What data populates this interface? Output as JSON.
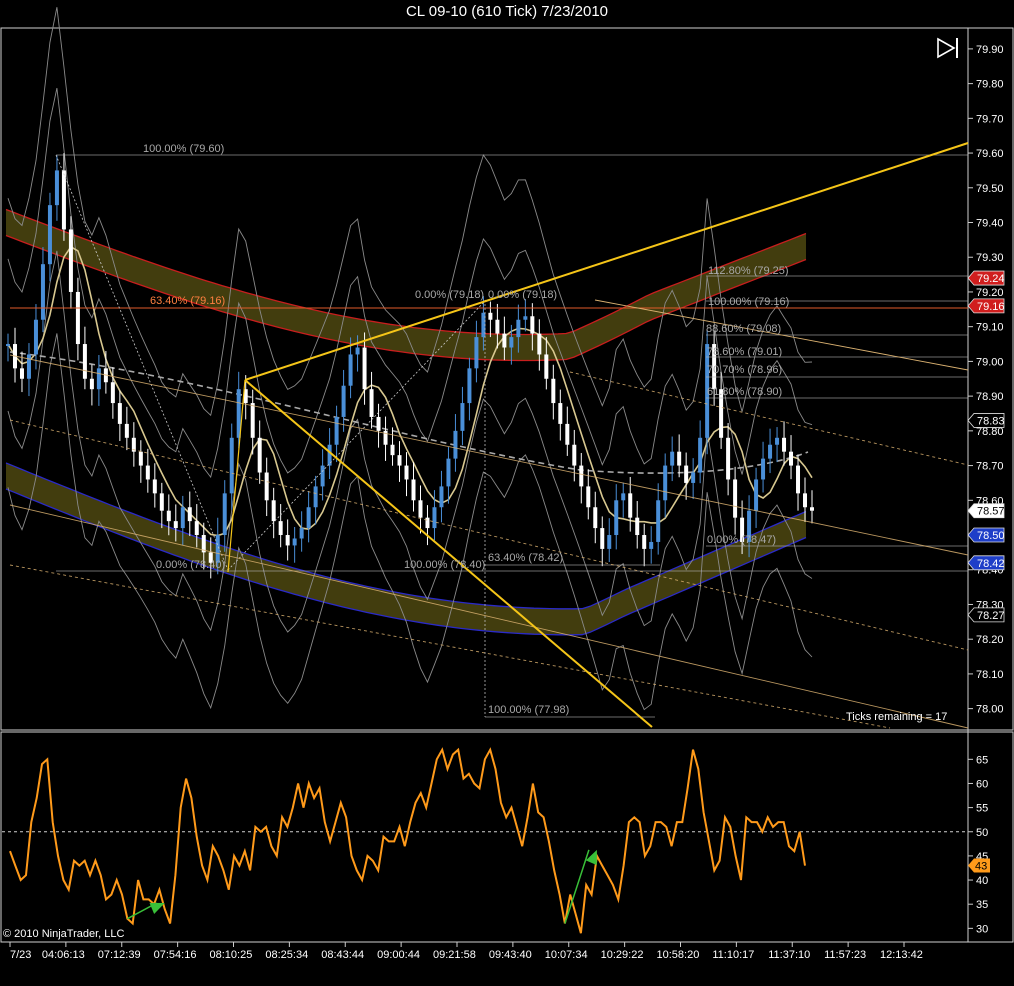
{
  "window_title": "CL 09-10 (610 Tick)  7/23/2010",
  "copyright": "© 2010 NinjaTrader, LLC",
  "ticks_remaining": "Ticks remaining = 17",
  "colors": {
    "background": "#000000",
    "up_bar": "#4a8fd8",
    "down_bar": "#ffffff",
    "fib_yellow": "#f5c518",
    "upper_band": "#c81e1e",
    "lower_band": "#2a2ac8",
    "band_fill": "#4e4810",
    "oscillator": "#ff9a1a",
    "divergence_arrow": "#39c039",
    "price_badge_red": "#d01e1e",
    "price_badge_blue": "#1e3ec8"
  },
  "icons": [
    "play-to-end-icon"
  ],
  "chart_data": [
    {
      "type": "candlestick",
      "instrument": "CL 09-10",
      "period": "610 Tick",
      "date": "7/23/2010",
      "ylim": [
        77.95,
        79.94
      ],
      "y_ticks": [
        "79.90",
        "79.80",
        "79.70",
        "79.60",
        "79.50",
        "79.40",
        "79.30",
        "79.20",
        "79.10",
        "79.00",
        "78.90",
        "78.80",
        "78.70",
        "78.60",
        "78.50",
        "78.40",
        "78.30",
        "78.20",
        "78.10",
        "78.00"
      ],
      "x_tick_labels": [
        "7/23",
        "04:06:13",
        "07:12:39",
        "07:54:16",
        "08:10:25",
        "08:25:34",
        "08:43:44",
        "09:00:44",
        "09:21:58",
        "09:43:40",
        "10:07:34",
        "10:29:22",
        "10:58:20",
        "11:10:17",
        "11:37:10",
        "11:57:23",
        "12:13:42"
      ],
      "close_series": [
        79.05,
        78.98,
        78.95,
        79.02,
        79.12,
        79.28,
        79.45,
        79.55,
        79.38,
        79.2,
        79.05,
        78.95,
        78.92,
        78.98,
        78.94,
        78.88,
        78.82,
        78.78,
        78.74,
        78.7,
        78.66,
        78.62,
        78.57,
        78.54,
        78.52,
        78.58,
        78.54,
        78.5,
        78.45,
        78.42,
        78.5,
        78.62,
        78.78,
        78.92,
        78.88,
        78.78,
        78.68,
        78.6,
        78.54,
        78.5,
        78.47,
        78.49,
        78.52,
        78.58,
        78.64,
        78.7,
        78.76,
        78.84,
        78.93,
        79.02,
        79.04,
        78.92,
        78.84,
        78.8,
        78.76,
        78.73,
        78.7,
        78.66,
        78.6,
        78.55,
        78.52,
        78.58,
        78.64,
        78.72,
        78.8,
        78.88,
        78.98,
        79.07,
        79.14,
        79.12,
        79.08,
        79.04,
        79.07,
        79.12,
        79.13,
        79.08,
        79.02,
        78.95,
        78.88,
        78.82,
        78.76,
        78.7,
        78.64,
        78.58,
        78.52,
        78.46,
        78.5,
        78.6,
        78.62,
        78.55,
        78.5,
        78.46,
        78.48,
        78.6,
        78.7,
        78.74,
        78.7,
        78.65,
        78.68,
        78.78,
        79.05,
        78.92,
        78.78,
        78.66,
        78.55,
        78.48,
        78.57,
        78.66,
        78.72,
        78.76,
        78.78,
        78.74,
        78.7,
        78.62,
        78.58,
        78.57
      ],
      "price_labels": [
        {
          "label": "79.24",
          "style": "red"
        },
        {
          "label": "79.16",
          "style": "red"
        },
        {
          "label": "78.83",
          "style": "dark"
        },
        {
          "label": "78.57",
          "style": "white"
        },
        {
          "label": "78.50",
          "style": "blue"
        },
        {
          "label": "78.42",
          "style": "blue"
        },
        {
          "label": "78.27",
          "style": "dark"
        }
      ],
      "fib_labels": [
        {
          "label": "100.00% (79.60)",
          "price": 79.6
        },
        {
          "label": "63.40% (79.16)",
          "price": 79.16,
          "accent": true
        },
        {
          "label": "0.00% (79.18)",
          "price": 79.18
        },
        {
          "label": "0.00% (79.18)",
          "price": 79.18
        },
        {
          "label": "112.80% (79.25)",
          "price": 79.25
        },
        {
          "label": "100.00% (79.16)",
          "price": 79.16
        },
        {
          "label": "88.60% (79.08)",
          "price": 79.08
        },
        {
          "label": "78.60% (79.01)",
          "price": 79.01
        },
        {
          "label": "70.70% (78.96)",
          "price": 78.96
        },
        {
          "label": "61.80% (78.90)",
          "price": 78.9
        },
        {
          "label": "0.00% (78.47)",
          "price": 78.47
        },
        {
          "label": "63.40% (78.42)",
          "price": 78.42
        },
        {
          "label": "100.00% (78.40)",
          "price": 78.4
        },
        {
          "label": "0.00% (78.40)",
          "price": 78.4
        },
        {
          "label": "100.00% (77.98)",
          "price": 77.98
        }
      ]
    },
    {
      "type": "line",
      "indicator": "oscillator",
      "ylim": [
        28,
        69
      ],
      "y_ticks": [
        65,
        60,
        55,
        50,
        45,
        40,
        35,
        30
      ],
      "reference_line": 50,
      "last_value_label": "43",
      "values": [
        46,
        43,
        40,
        41,
        52,
        57,
        64,
        65,
        52,
        45,
        40,
        38,
        44,
        43,
        44,
        41,
        44,
        41,
        36,
        37,
        40,
        37,
        32,
        31,
        40,
        36,
        36,
        35,
        38,
        34,
        31,
        41,
        55,
        61,
        57,
        49,
        43,
        40,
        47,
        45,
        42,
        38,
        45,
        43,
        46,
        42,
        51,
        50,
        51,
        47,
        45,
        53,
        51,
        55,
        60,
        55,
        60,
        57,
        59,
        52,
        48,
        52,
        56,
        53,
        45,
        42,
        40,
        45,
        44,
        42,
        49,
        48,
        48,
        51,
        47,
        52,
        56,
        58,
        55,
        60,
        65,
        67,
        63,
        66,
        67,
        61,
        62,
        60,
        59,
        65,
        67,
        63,
        56,
        53,
        55,
        51,
        47,
        53,
        60,
        54,
        53,
        48,
        42,
        37,
        31,
        37,
        33,
        29,
        39,
        37,
        45,
        43,
        41,
        39,
        36,
        43,
        52,
        53,
        52,
        45,
        47,
        52,
        52,
        51,
        47,
        52,
        52,
        59,
        67,
        63,
        54,
        48,
        42,
        44,
        53,
        51,
        45,
        40,
        53,
        52,
        52,
        50,
        53,
        51,
        52,
        52,
        47,
        46,
        50,
        43
      ],
      "divergence_arrows": [
        {
          "from_index": 22,
          "to_index": 29
        },
        {
          "from_index": 104,
          "to_index": 110
        }
      ]
    }
  ]
}
